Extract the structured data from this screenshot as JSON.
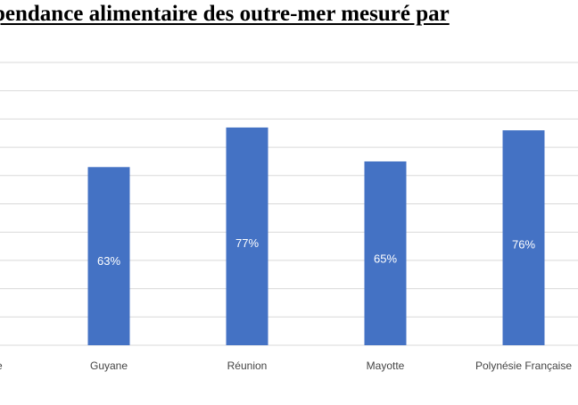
{
  "header": {
    "title": "pendance alimentaire des outre-mer mesuré par"
  },
  "colors": {
    "bar": "#4472c4",
    "grid": "#d9d9d9",
    "data_label": "#ffffff"
  },
  "chart_data": {
    "type": "bar",
    "title": "",
    "xlabel": "",
    "ylabel": "",
    "categories": [
      "e",
      "Guyane",
      "Réunion",
      "Mayotte",
      "Polynésie Française"
    ],
    "values": [
      null,
      63,
      77,
      65,
      76
    ],
    "data_labels": [
      "",
      "63%",
      "77%",
      "65%",
      "76%"
    ],
    "ylim": [
      0,
      100
    ],
    "grid": true,
    "legend": "none"
  }
}
